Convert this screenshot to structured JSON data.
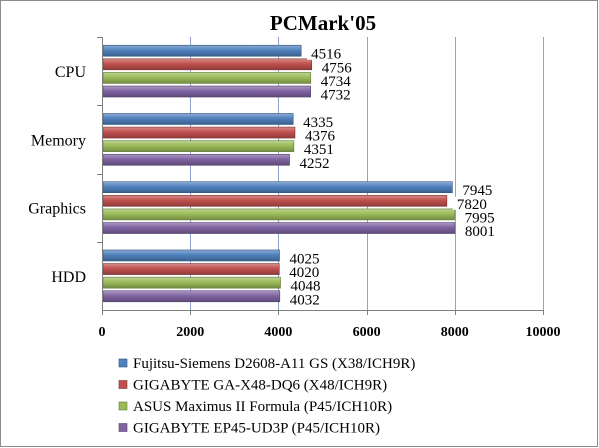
{
  "chart_data": {
    "type": "bar",
    "orientation": "horizontal",
    "title": "PCMark'05",
    "categories": [
      "CPU",
      "Memory",
      "Graphics",
      "HDD"
    ],
    "series": [
      {
        "name": "Fujitsu-Siemens D2608-A11 GS (X38/ICH9R)",
        "color": "#4f81bd",
        "values": [
          4516,
          4335,
          7945,
          4025
        ]
      },
      {
        "name": "GIGABYTE GA-X48-DQ6 (X48/ICH9R)",
        "color": "#c0504d",
        "values": [
          4756,
          4376,
          7820,
          4020
        ]
      },
      {
        "name": "ASUS Maximus II Formula (P45/ICH10R)",
        "color": "#9bbb59",
        "values": [
          4734,
          4351,
          7995,
          4048
        ]
      },
      {
        "name": "GIGABYTE EP45-UD3P (P45/ICH10R)",
        "color": "#8064a2",
        "values": [
          4732,
          4252,
          8001,
          4032
        ]
      }
    ],
    "xlim": [
      0,
      10000
    ],
    "xticks": [
      0,
      2000,
      4000,
      6000,
      8000,
      10000
    ],
    "xlabel": "",
    "ylabel": "",
    "grid": true,
    "legend_position": "bottom"
  }
}
